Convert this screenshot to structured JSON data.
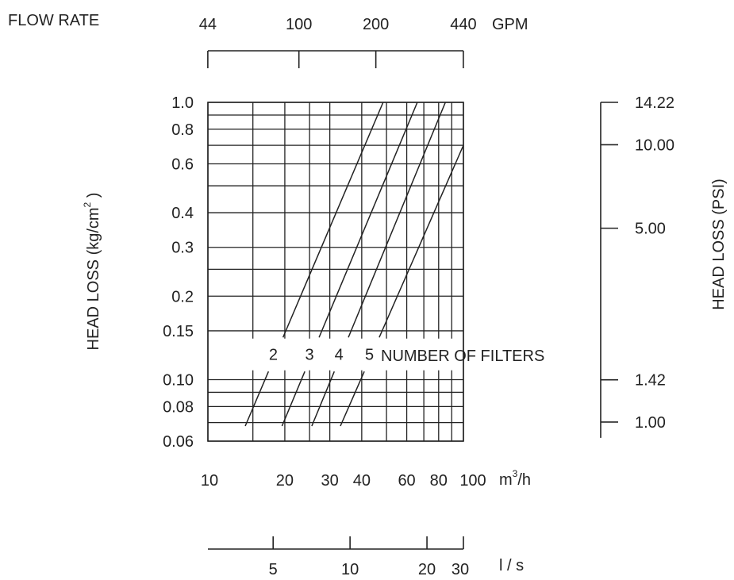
{
  "chart_data": {
    "type": "line",
    "title": "",
    "x_axis": {
      "label_base": "m",
      "label_power": "3",
      "label_tail": "/h",
      "scale": "log",
      "range": [
        10,
        100
      ],
      "grid": [
        10,
        15,
        20,
        25,
        30,
        40,
        50,
        60,
        70,
        80,
        90,
        100
      ],
      "tick_labels": [
        {
          "value": 10,
          "text": "10"
        },
        {
          "value": 20,
          "text": "20"
        },
        {
          "value": 30,
          "text": "30"
        },
        {
          "value": 40,
          "text": "40"
        },
        {
          "value": 60,
          "text": "60"
        },
        {
          "value": 80,
          "text": "80"
        },
        {
          "value": 100,
          "text": "100"
        }
      ]
    },
    "y_axis": {
      "label_base": "HEAD LOSS (kg/cm",
      "label_power": "2",
      "label_tail": " )",
      "scale": "log",
      "range": [
        0.06,
        1.0
      ],
      "grid": [
        0.06,
        0.07,
        0.08,
        0.09,
        0.1,
        0.15,
        0.2,
        0.25,
        0.3,
        0.4,
        0.5,
        0.6,
        0.7,
        0.8,
        0.9,
        1.0
      ],
      "tick_labels": [
        {
          "value": 1.0,
          "text": "1.0"
        },
        {
          "value": 0.8,
          "text": "0.8"
        },
        {
          "value": 0.6,
          "text": "0.6"
        },
        {
          "value": 0.4,
          "text": "0.4"
        },
        {
          "value": 0.3,
          "text": "0.3"
        },
        {
          "value": 0.2,
          "text": "0.2"
        },
        {
          "value": 0.15,
          "text": "0.15"
        },
        {
          "value": 0.1,
          "text": "0.10"
        },
        {
          "value": 0.08,
          "text": "0.08"
        },
        {
          "value": 0.06,
          "text": "0.06"
        }
      ]
    },
    "top_axis": {
      "left_label": "FLOW RATE",
      "unit": "GPM",
      "ticks": [
        {
          "value": 44,
          "text": "44"
        },
        {
          "value": 100,
          "text": "100"
        },
        {
          "value": 200,
          "text": "200"
        },
        {
          "value": 440,
          "text": "440"
        }
      ]
    },
    "bottom_axis": {
      "unit": "l / s",
      "ticks": [
        {
          "value": 5,
          "text": "5"
        },
        {
          "value": 10,
          "text": "10"
        },
        {
          "value": 20,
          "text": "20"
        },
        {
          "value": 30,
          "text": "30"
        }
      ]
    },
    "right_axis": {
      "label": "HEAD LOSS (PSI)",
      "ticks": [
        {
          "value": 14.22,
          "text": "14.22"
        },
        {
          "value": 10.0,
          "text": "10.00"
        },
        {
          "value": 5.0,
          "text": "5.00"
        },
        {
          "value": 1.42,
          "text": "1.42"
        },
        {
          "value": 1.0,
          "text": "1.00"
        }
      ]
    },
    "curve_annotation": "NUMBER OF FILTERS",
    "gap_band": [
      0.107,
      0.142
    ],
    "series": [
      {
        "label": "2",
        "points": [
          [
            14.0,
            0.068
          ],
          [
            48.5,
            1.0
          ]
        ]
      },
      {
        "label": "3",
        "points": [
          [
            19.5,
            0.068
          ],
          [
            66.0,
            1.0
          ]
        ]
      },
      {
        "label": "4",
        "points": [
          [
            25.5,
            0.068
          ],
          [
            85.0,
            1.0
          ]
        ]
      },
      {
        "label": "5",
        "points": [
          [
            33.0,
            0.068
          ],
          [
            100.0,
            0.7
          ]
        ]
      }
    ],
    "colors": {
      "ink": "#222222",
      "background": "#ffffff"
    }
  }
}
